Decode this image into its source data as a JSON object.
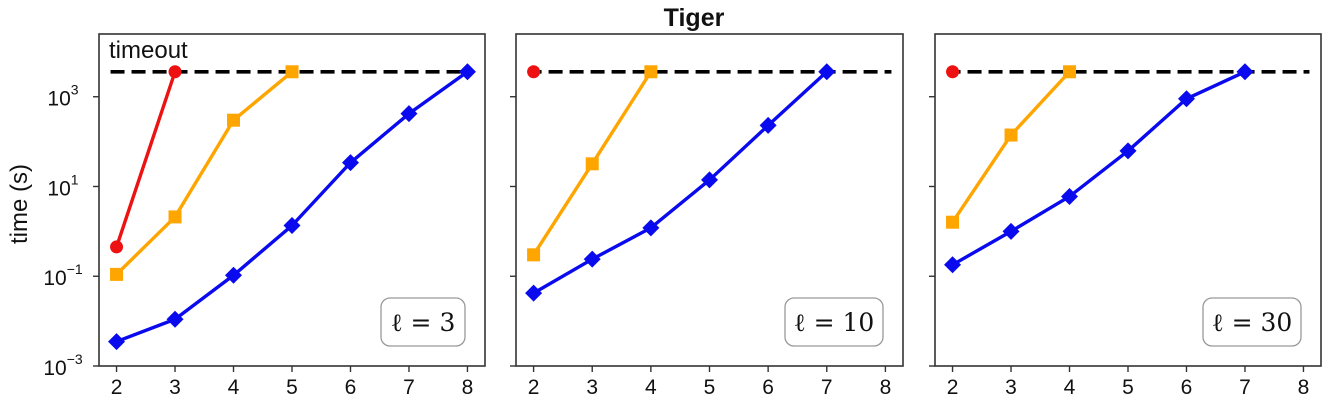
{
  "figure": {
    "title": "Tiger",
    "ylabel": "time (s)"
  },
  "colors": {
    "red": "#ee1111",
    "orange": "#ffa500",
    "blue": "#0a0aee",
    "timeout_line": "#000000",
    "frame": "#333333"
  },
  "chart_data": [
    {
      "type": "line",
      "yscale": "log",
      "ylim": [
        0.001,
        25000
      ],
      "xlim": [
        1.7,
        8.3
      ],
      "x_ticks": [
        2,
        3,
        4,
        5,
        6,
        7,
        8
      ],
      "y_ticks": [
        {
          "value": 0.001,
          "base": "10",
          "exp": "−3"
        },
        {
          "value": 0.1,
          "base": "10",
          "exp": "−1"
        },
        {
          "value": 10,
          "base": "10",
          "exp": "1"
        },
        {
          "value": 1000,
          "base": "10",
          "exp": "3"
        }
      ],
      "box_label": "ℓ = 3",
      "timeout": {
        "value": 3600,
        "label": "timeout"
      },
      "series": [
        {
          "color": "red",
          "marker": "circle",
          "x": [
            2,
            3
          ],
          "y": [
            0.45,
            3600
          ]
        },
        {
          "color": "orange",
          "marker": "square",
          "x": [
            2,
            3,
            4,
            5
          ],
          "y": [
            0.11,
            2.1,
            300,
            3600
          ]
        },
        {
          "color": "blue",
          "marker": "diamond",
          "x": [
            2,
            3,
            4,
            5,
            6,
            7,
            8
          ],
          "y": [
            0.0035,
            0.011,
            0.105,
            1.35,
            34,
            420,
            3600
          ]
        }
      ]
    },
    {
      "type": "line",
      "yscale": "log",
      "ylim": [
        0.001,
        25000
      ],
      "xlim": [
        1.7,
        8.3
      ],
      "x_ticks": [
        2,
        3,
        4,
        5,
        6,
        7,
        8
      ],
      "box_label": "ℓ = 10",
      "timeout": {
        "value": 3600
      },
      "series": [
        {
          "color": "red",
          "marker": "circle",
          "x": [
            2
          ],
          "y": [
            3600
          ]
        },
        {
          "color": "orange",
          "marker": "square",
          "x": [
            2,
            3,
            4
          ],
          "y": [
            0.3,
            32,
            3600
          ]
        },
        {
          "color": "blue",
          "marker": "diamond",
          "x": [
            2,
            3,
            4,
            5,
            6,
            7
          ],
          "y": [
            0.042,
            0.24,
            1.2,
            14,
            230,
            3600
          ]
        }
      ]
    },
    {
      "type": "line",
      "yscale": "log",
      "ylim": [
        0.001,
        25000
      ],
      "xlim": [
        1.7,
        8.3
      ],
      "x_ticks": [
        2,
        3,
        4,
        5,
        6,
        7,
        8
      ],
      "box_label": "ℓ = 30",
      "timeout": {
        "value": 3600
      },
      "series": [
        {
          "color": "red",
          "marker": "circle",
          "x": [
            2
          ],
          "y": [
            3600
          ]
        },
        {
          "color": "orange",
          "marker": "square",
          "x": [
            2,
            3,
            4
          ],
          "y": [
            1.6,
            140,
            3600
          ]
        },
        {
          "color": "blue",
          "marker": "diamond",
          "x": [
            2,
            3,
            4,
            5,
            6,
            7
          ],
          "y": [
            0.18,
            1.0,
            6.0,
            62,
            900,
            3600
          ]
        }
      ]
    }
  ]
}
